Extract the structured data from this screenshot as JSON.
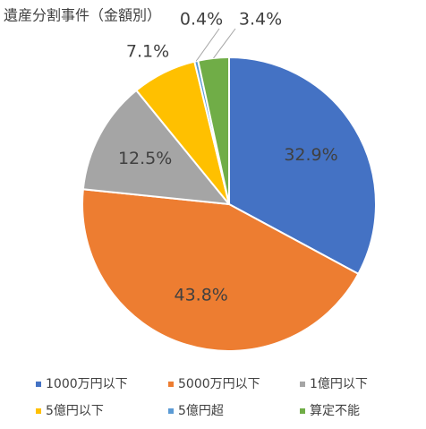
{
  "chart_data": {
    "type": "pie",
    "title": "遺産分割事件（金額別）",
    "categories": [
      "1000万円以下",
      "5000万円以下",
      "1億円以下",
      "5億円以下",
      "5億円超",
      "算定不能"
    ],
    "values": [
      32.9,
      43.8,
      12.5,
      7.1,
      0.4,
      3.4
    ],
    "value_labels": [
      "32.9%",
      "43.8%",
      "12.5%",
      "7.1%",
      "0.4%",
      "3.4%"
    ],
    "colors": [
      "#4472c4",
      "#ed7d31",
      "#a5a5a5",
      "#ffc000",
      "#5b9bd5",
      "#70ad47"
    ],
    "legend": "bottom"
  }
}
